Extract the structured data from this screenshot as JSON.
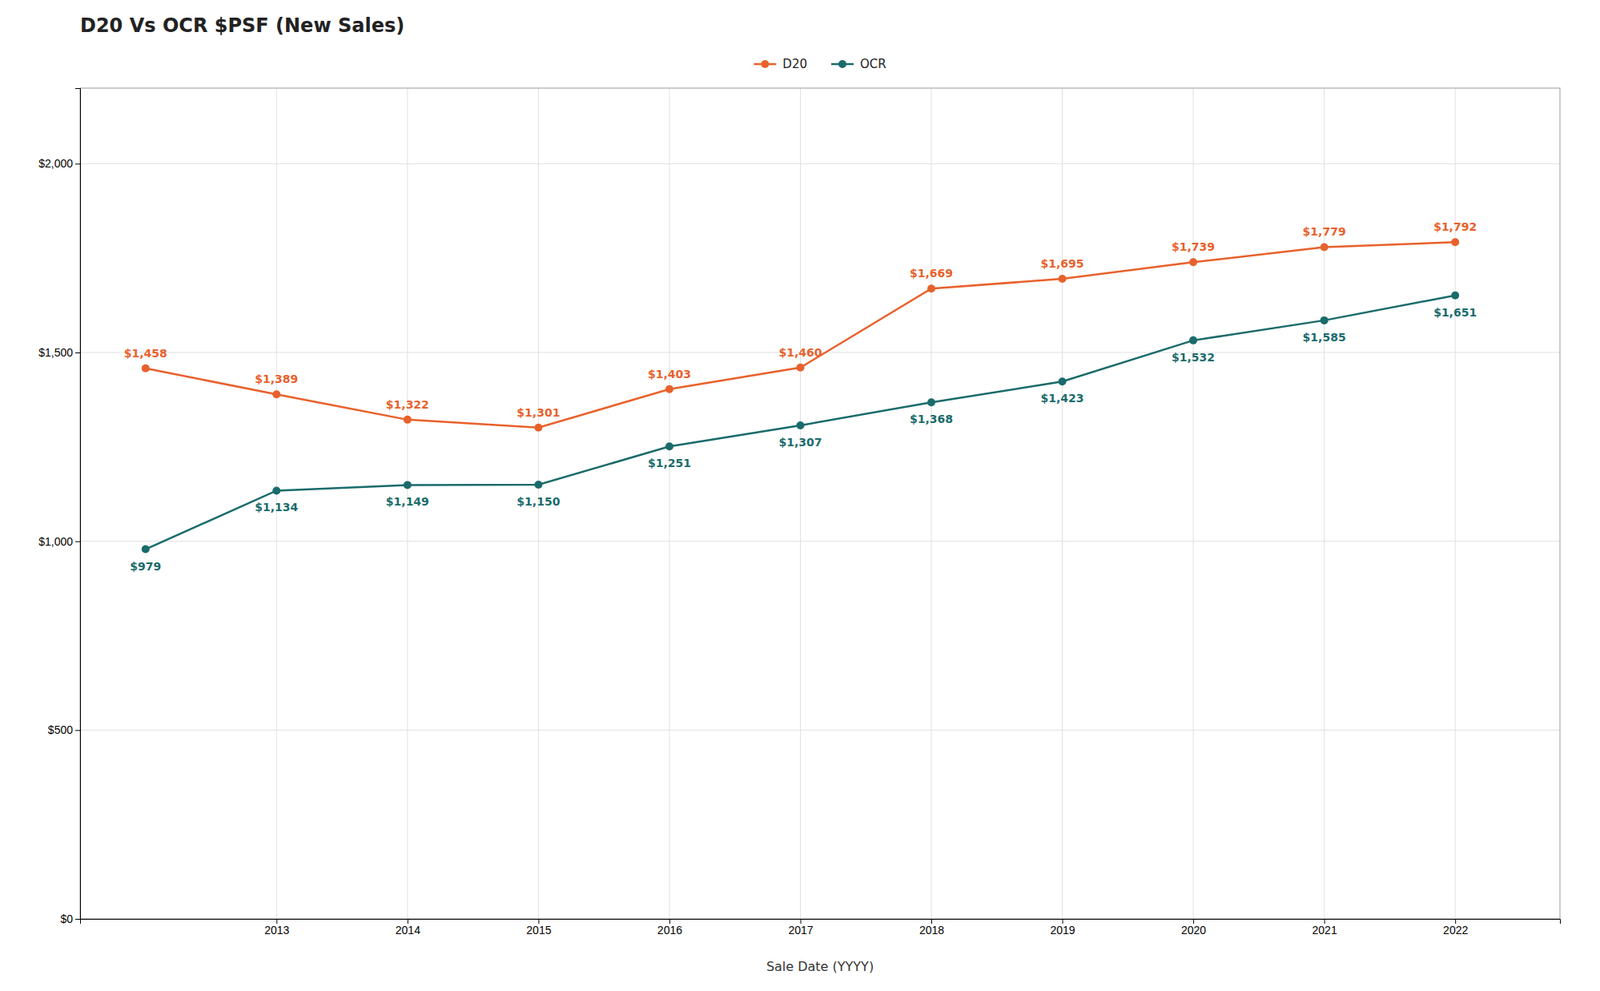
{
  "chart_data": {
    "type": "line",
    "title": "D20 Vs OCR $PSF (New Sales)",
    "xlabel": "Sale Date (YYYY)",
    "x": [
      2012,
      2013,
      2014,
      2015,
      2016,
      2017,
      2018,
      2019,
      2020,
      2021,
      2022
    ],
    "series": [
      {
        "name": "D20",
        "color": "#e8612c",
        "values": [
          1458,
          1389,
          1322,
          1301,
          1403,
          1460,
          1669,
          1695,
          1739,
          1779,
          1792
        ],
        "value_labels": [
          "$1,458",
          "$1,389",
          "$1,322",
          "$1,301",
          "$1,403",
          "$1,460",
          "$1,669",
          "$1,695",
          "$1,739",
          "$1,779",
          "$1,792"
        ]
      },
      {
        "name": "OCR",
        "color": "#1a6b6b",
        "values": [
          979,
          1134,
          1149,
          1150,
          1251,
          1307,
          1368,
          1423,
          1532,
          1585,
          1651
        ],
        "value_labels": [
          "$979",
          "$1,134",
          "$1,149",
          "$1,150",
          "$1,251",
          "$1,307",
          "$1,368",
          "$1,423",
          "$1,532",
          "$1,585",
          "$1,651"
        ]
      }
    ],
    "xlim": [
      2011.5,
      2022.8
    ],
    "xticks": [
      2013,
      2014,
      2015,
      2016,
      2017,
      2018,
      2019,
      2020,
      2021,
      2022
    ],
    "ylim": [
      0,
      2200
    ],
    "yticks": [
      {
        "value": 0,
        "label": "$0"
      },
      {
        "value": 500,
        "label": "$500"
      },
      {
        "value": 1000,
        "label": "$1,000"
      },
      {
        "value": 1500,
        "label": "$1,500"
      },
      {
        "value": 2000,
        "label": "$2,000"
      }
    ],
    "grid": true,
    "legend": "top",
    "data_labels": true,
    "marker": "circle"
  }
}
